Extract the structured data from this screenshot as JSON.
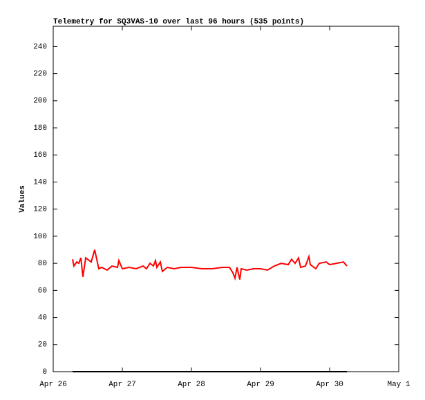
{
  "chart_data": {
    "type": "line",
    "title": "Telemetry for SQ3VAS-10 over last 96 hours (535 points)",
    "y_label": "Values",
    "x": [
      0.28,
      0.3,
      0.34,
      0.37,
      0.4,
      0.43,
      0.47,
      0.55,
      0.6,
      0.66,
      0.7,
      0.78,
      0.85,
      0.93,
      0.95,
      1.0,
      1.1,
      1.2,
      1.3,
      1.35,
      1.4,
      1.45,
      1.48,
      1.5,
      1.55,
      1.58,
      1.65,
      1.75,
      1.85,
      2.0,
      2.15,
      2.3,
      2.45,
      2.55,
      2.6,
      2.63,
      2.66,
      2.7,
      2.72,
      2.8,
      2.9,
      3.0,
      3.1,
      3.2,
      3.3,
      3.4,
      3.45,
      3.5,
      3.55,
      3.58,
      3.65,
      3.7,
      3.72,
      3.8,
      3.85,
      3.95,
      4.0,
      4.1,
      4.2,
      4.25
    ],
    "series": [
      {
        "color": "#ff0000",
        "values": [
          83,
          78,
          81,
          80,
          84,
          70,
          84,
          81,
          90,
          76,
          77,
          75,
          78,
          77,
          82,
          76,
          77,
          76,
          78,
          76,
          80,
          78,
          82,
          77,
          81,
          74,
          77,
          76,
          77,
          77,
          76,
          76,
          77,
          77,
          73,
          69,
          77,
          68,
          76,
          75,
          76,
          76,
          75,
          78,
          80,
          79,
          83,
          80,
          84,
          77,
          78,
          85,
          79,
          76,
          80,
          81,
          79,
          80,
          81,
          78
        ]
      },
      {
        "color": "#000000",
        "values": [
          0,
          0,
          0,
          0,
          0,
          0,
          0,
          0,
          0,
          0,
          0,
          0,
          0,
          0,
          0,
          0,
          0,
          0,
          0,
          0,
          0,
          0,
          0,
          0,
          0,
          0,
          0,
          0,
          0,
          0,
          0,
          0,
          0,
          0,
          0,
          0,
          0,
          0,
          0,
          0,
          0,
          0,
          0,
          0,
          0,
          0,
          0,
          0,
          0,
          0,
          0,
          0,
          0,
          0,
          0,
          0,
          0,
          0,
          0,
          0
        ]
      }
    ],
    "xlim": [
      0,
      5
    ],
    "xticks": [
      {
        "value": 0,
        "label": "Apr 26"
      },
      {
        "value": 1,
        "label": "Apr 27"
      },
      {
        "value": 2,
        "label": "Apr 28"
      },
      {
        "value": 3,
        "label": "Apr 29"
      },
      {
        "value": 4,
        "label": "Apr 30"
      },
      {
        "value": 5,
        "label": "May 1"
      }
    ],
    "ylim": [
      0,
      255
    ],
    "yticks": [
      0,
      20,
      40,
      60,
      80,
      100,
      120,
      140,
      160,
      180,
      200,
      220,
      240
    ]
  }
}
